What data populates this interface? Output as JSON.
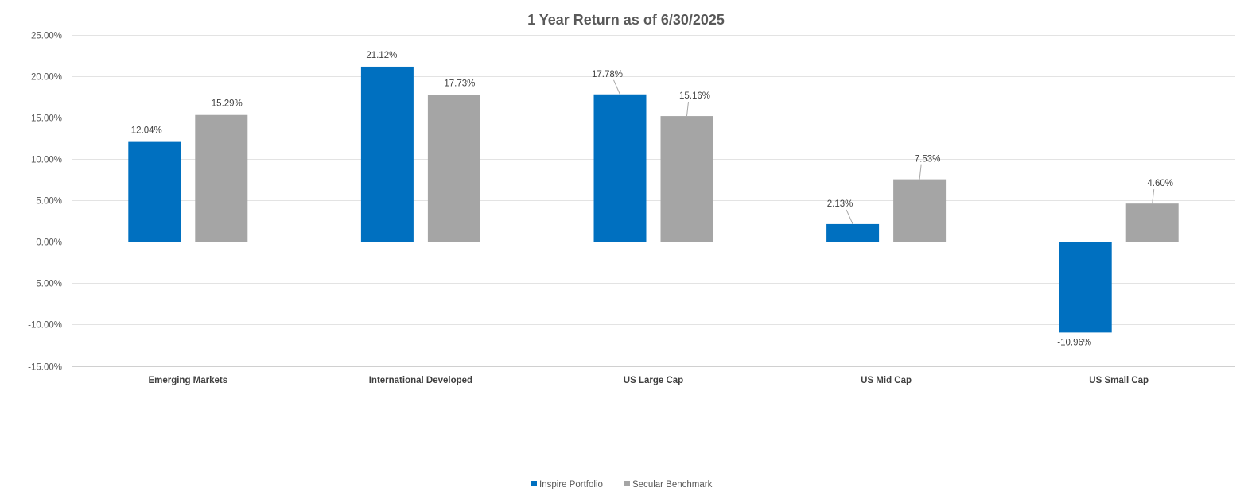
{
  "chart_data": {
    "type": "bar",
    "title": "1 Year Return as of 6/30/2025",
    "categories": [
      "Emerging Markets",
      "International Developed",
      "US Large Cap",
      "US Mid Cap",
      "US Small Cap"
    ],
    "series": [
      {
        "name": "Inspire Portfolio",
        "color": "#0070C0",
        "values": [
          12.04,
          21.12,
          17.78,
          2.13,
          -10.96
        ],
        "labels": [
          "12.04%",
          "21.12%",
          "17.78%",
          "2.13%",
          "-10.96%"
        ]
      },
      {
        "name": "Secular Benchmark",
        "color": "#A5A5A5",
        "values": [
          15.29,
          17.73,
          15.16,
          7.53,
          4.6
        ],
        "labels": [
          "15.29%",
          "17.73%",
          "15.16%",
          "7.53%",
          "4.60%"
        ]
      }
    ],
    "ylim": [
      -15,
      25
    ],
    "yticks": [
      25,
      20,
      15,
      10,
      5,
      0,
      -5,
      -10,
      -15
    ],
    "ytick_labels": [
      "25.00%",
      "20.00%",
      "15.00%",
      "10.00%",
      "5.00%",
      "0.00%",
      "-5.00%",
      "-10.00%",
      "-15.00%"
    ],
    "xlabel": "",
    "ylabel": "",
    "grid": true,
    "legend_position": "bottom-center"
  }
}
